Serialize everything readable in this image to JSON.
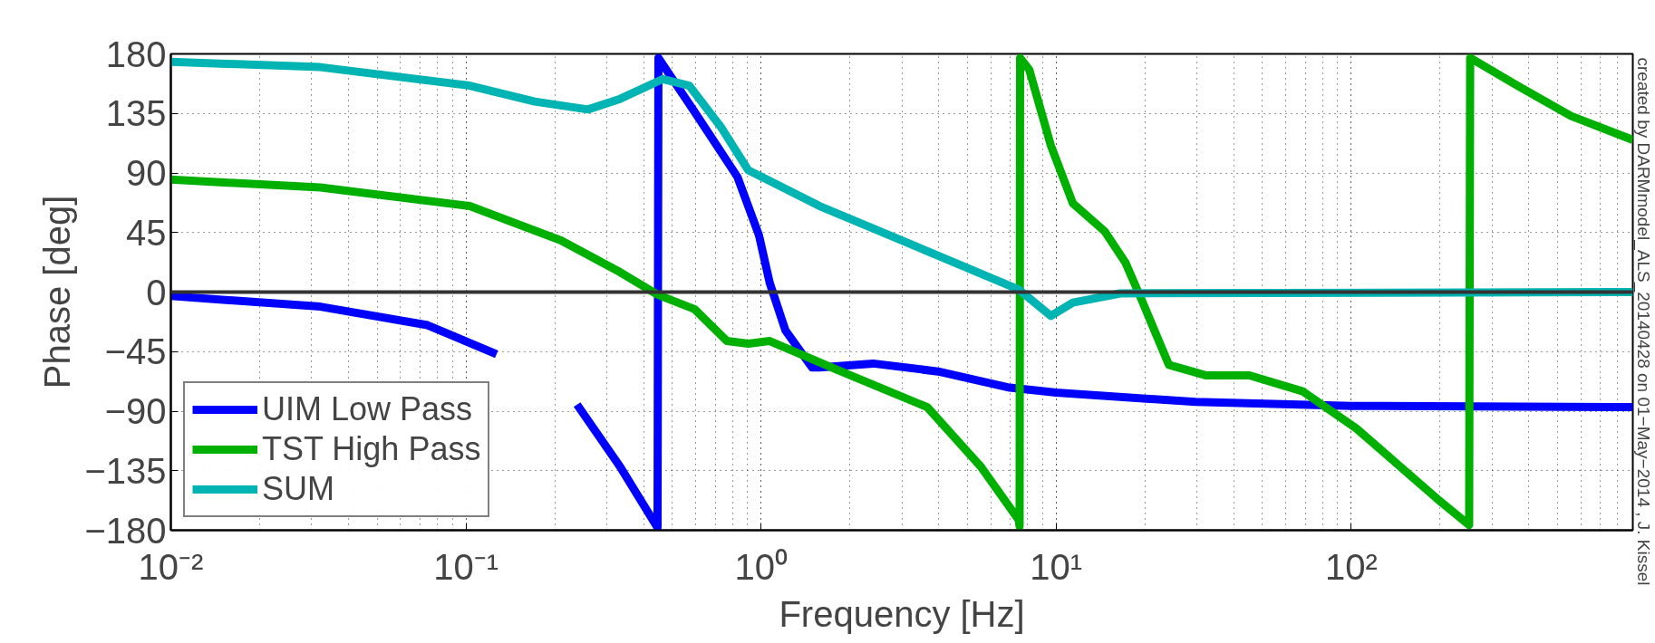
{
  "chart_data": {
    "type": "line",
    "xlabel": "Frequency [Hz]",
    "ylabel": "Phase [deg]",
    "log": "x",
    "grid": true,
    "legend": "bottom left",
    "line_style": "solid",
    "marker": "none",
    "xlim": [
      0.01,
      900
    ],
    "xticks": [
      {
        "value": 0.01,
        "label": "10⁻²"
      },
      {
        "value": 0.1,
        "label": "10⁻¹"
      },
      {
        "value": 1,
        "label": "10⁰"
      },
      {
        "value": 10,
        "label": "10¹"
      },
      {
        "value": 100,
        "label": "10²"
      }
    ],
    "ylim": [
      -180,
      180
    ],
    "yticks": [
      -180,
      -135,
      -90,
      -45,
      0,
      45,
      90,
      135,
      180
    ],
    "ref_lines": [
      {
        "axis": "y",
        "value": 0,
        "color": "#333333"
      }
    ],
    "annotations": [
      "created by DARMmodel_ALS_20140428 on 01−May−2014 , J. Kissel"
    ],
    "series": [
      {
        "name": "UIM Low Pass",
        "color": "#0000ff",
        "x": [
          0.01,
          0.0321,
          0.0741,
          0.127,
          null,
          0.238,
          0.333,
          0.446,
          0.449,
          0.596,
          0.832,
          0.984,
          1.07,
          1.21,
          1.49,
          1.58,
          2.4,
          3.98,
          6.86,
          10,
          29.7,
          100,
          900
        ],
        "values": [
          -3,
          -11,
          -25,
          -47,
          null,
          -85,
          -132,
          -178,
          177,
          136,
          87,
          43,
          7,
          -29,
          -57,
          -57,
          -54,
          -60,
          -72,
          -76,
          -83,
          -86,
          -87
        ]
      },
      {
        "name": "TST High Pass",
        "color": "#00b000",
        "x": [
          0.01,
          0.0321,
          0.103,
          0.21,
          0.333,
          0.446,
          0.596,
          0.766,
          0.906,
          1.07,
          1.82,
          3.66,
          5.56,
          7.46,
          7.52,
          7.55,
          8.11,
          9.59,
          11.4,
          14.6,
          17.2,
          19.5,
          24.1,
          32.3,
          45.2,
          68.5,
          104,
          195,
          251,
          253,
          366,
          556,
          900
        ],
        "values": [
          85,
          79,
          65,
          39,
          15,
          -2,
          -13,
          -37,
          -39,
          -37,
          -59,
          -87,
          -132,
          -172,
          -177,
          177,
          168,
          111,
          67,
          46,
          22,
          -6,
          -55,
          -63,
          -63,
          -75,
          -103,
          -156,
          -176,
          177,
          156,
          133,
          115
        ]
      },
      {
        "name": "SUM",
        "color": "#00b4b4",
        "x": [
          0.01,
          0.0321,
          0.103,
          0.171,
          0.259,
          0.333,
          0.465,
          0.571,
          0.735,
          0.906,
          1.07,
          1.58,
          3.23,
          7.46,
          9.59,
          11.4,
          16.5,
          900
        ],
        "values": [
          174,
          170,
          156,
          144,
          138,
          146,
          161,
          156,
          124,
          92,
          84,
          65,
          36,
          2,
          -18,
          -8,
          -1,
          0
        ]
      }
    ]
  }
}
